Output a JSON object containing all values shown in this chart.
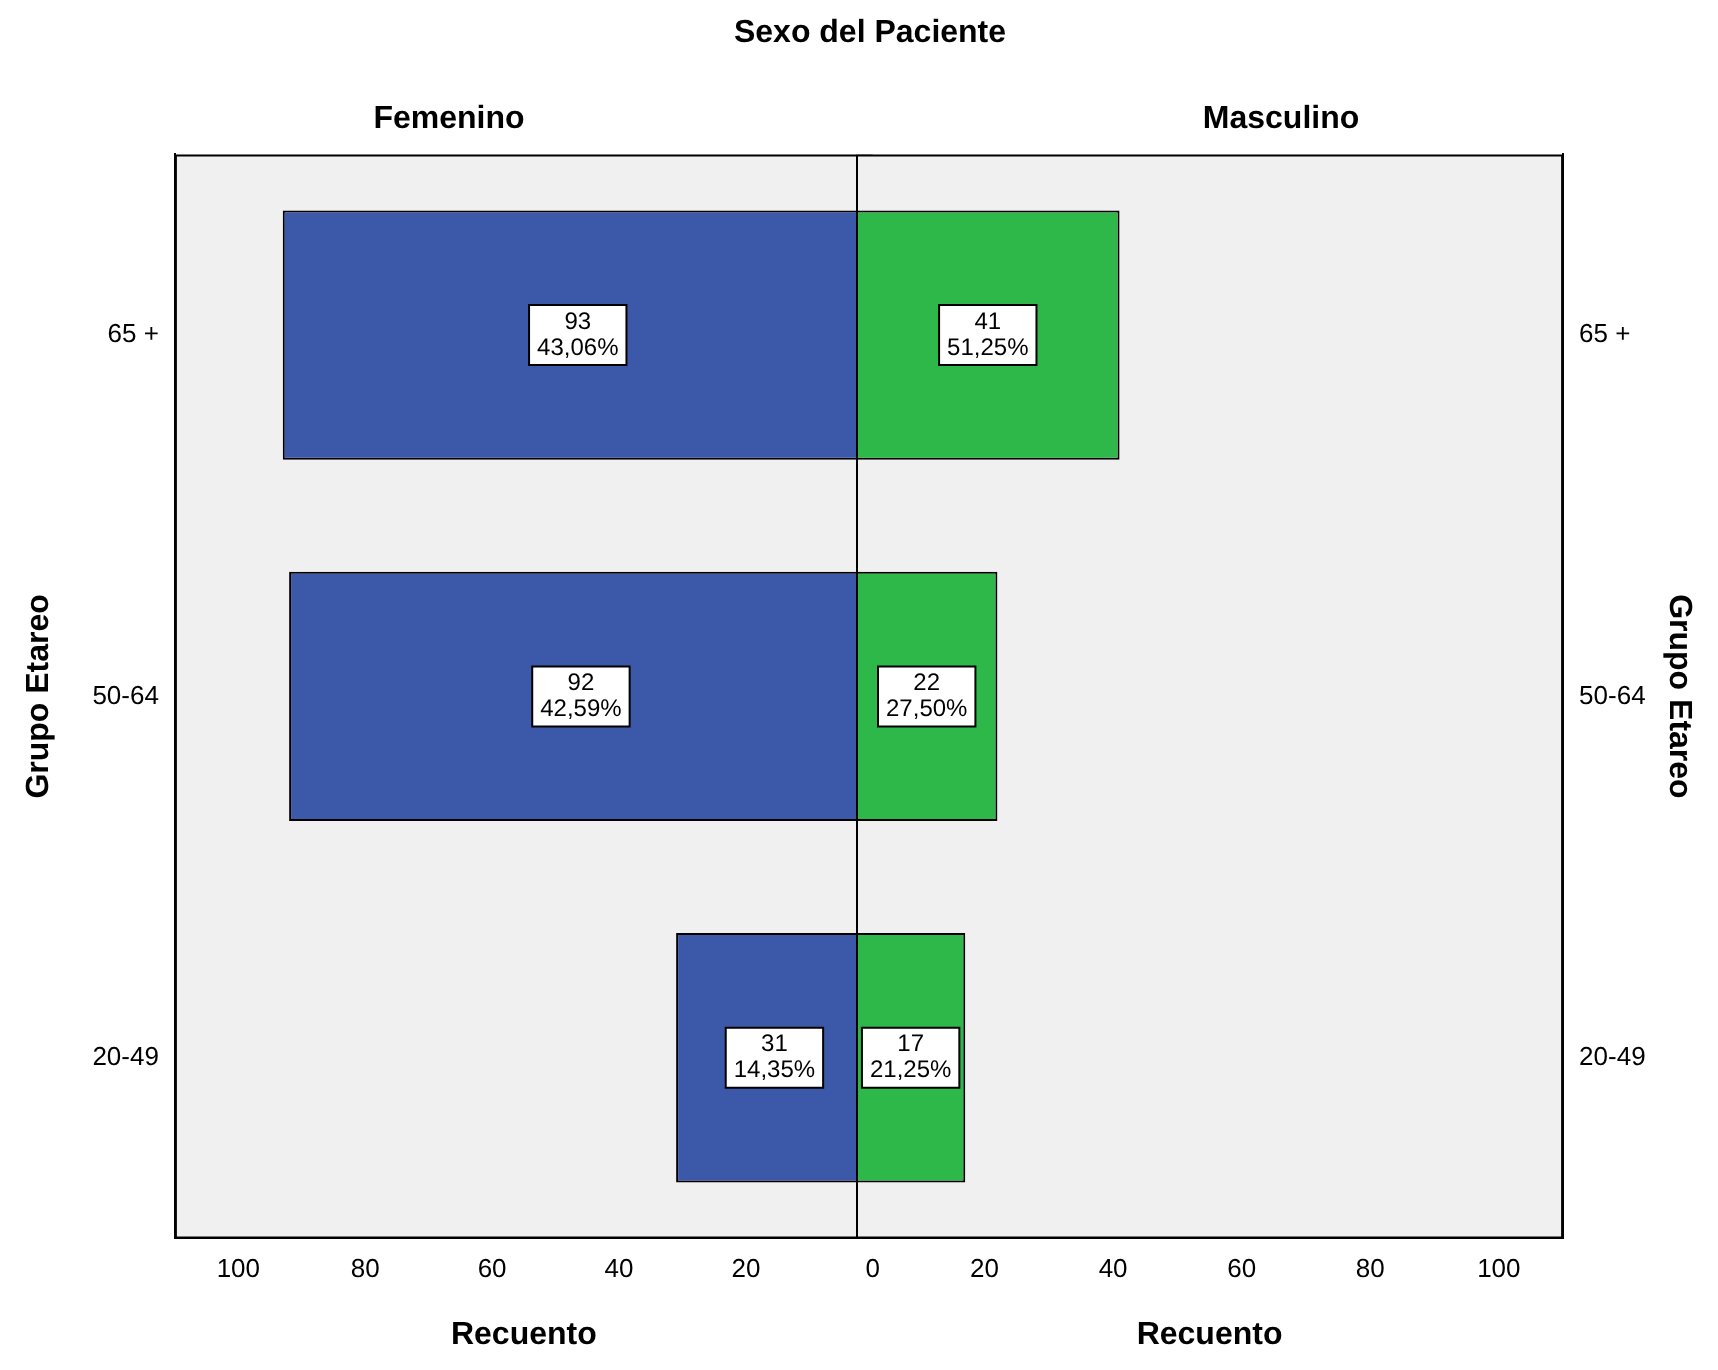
{
  "chart_data": [
    {
      "type": "bar",
      "orientation": "horizontal",
      "title": "Sexo del Paciente",
      "subtitle": "Femenino",
      "xlabel": "Recuento",
      "ylabel": "Grupo Etareo",
      "categories": [
        "65 +",
        "50-64",
        "20-49"
      ],
      "values": [
        93,
        92,
        31
      ],
      "color": "#3c58a8",
      "value_labels": [
        "93\n43,06%",
        "92\n42,59%",
        "31\n14,35%"
      ],
      "xlim": [
        110,
        0
      ],
      "xticks": [
        100,
        80,
        60,
        40,
        20,
        0
      ]
    },
    {
      "type": "bar",
      "orientation": "horizontal",
      "subtitle": "Masculino",
      "xlabel": "Recuento",
      "ylabel": "Grupo Etareo",
      "categories": [
        "65 +",
        "50-64",
        "20-49"
      ],
      "values": [
        41,
        22,
        17
      ],
      "color": "#2eb84a",
      "value_labels": [
        "41\n51,25%",
        "22\n27,50%",
        "17\n21,25%"
      ],
      "xlim": [
        0,
        110
      ],
      "xticks": [
        20,
        40,
        60,
        80,
        100
      ]
    }
  ]
}
